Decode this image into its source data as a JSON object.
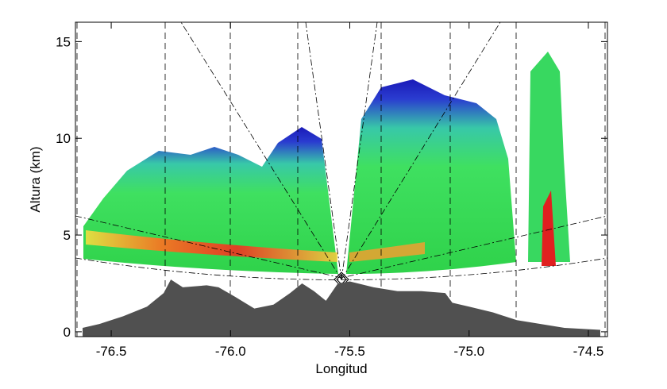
{
  "chart_data": {
    "type": "area",
    "x_label": "Longitud",
    "y_label": "Altura (km)",
    "xlim": [
      -76.65,
      -74.42
    ],
    "ylim": [
      -0.25,
      16
    ],
    "xticks": [
      -76.5,
      {
        "value": -76,
        "label": "-76.0"
      },
      -75.5,
      {
        "value": -75,
        "label": "-75.0"
      },
      -74.5
    ],
    "yticks": [
      0,
      5,
      10,
      15
    ],
    "series": [
      {
        "color": "#505050",
        "x": [
          -76.62,
          -76.55,
          -76.45,
          -76.35,
          -76.28,
          -76.25,
          -76.2,
          -76.1,
          -76.05,
          -75.98,
          -75.9,
          -75.82,
          -75.75,
          -75.7,
          -75.65,
          -75.6,
          -75.55,
          -75.5,
          -75.4,
          -75.3,
          -75.2,
          -75.1,
          -75.07,
          -75.0,
          -74.9,
          -74.8,
          -74.7,
          -74.6,
          -74.45
        ],
        "values": [
          0.2,
          0.4,
          0.8,
          1.3,
          2.0,
          2.7,
          2.3,
          2.4,
          2.3,
          1.8,
          1.2,
          1.4,
          2.0,
          2.5,
          2.1,
          1.6,
          2.5,
          2.6,
          2.3,
          2.1,
          2.1,
          2.0,
          1.5,
          1.3,
          1.0,
          0.6,
          0.4,
          0.2,
          0.1
        ]
      }
    ]
  }
}
